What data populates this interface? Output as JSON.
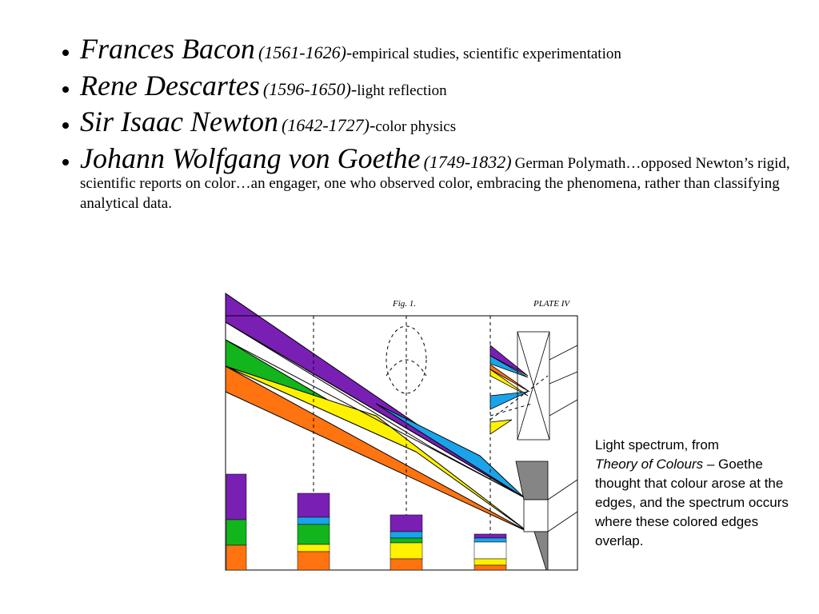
{
  "bullets": [
    {
      "name": "Frances Bacon",
      "dates": "(1561-1626)-",
      "desc": "empirical studies, scientific experimentation"
    },
    {
      "name": "Rene Descartes",
      "dates": "(1596-1650)-",
      "desc": "light reflection"
    },
    {
      "name": "Sir Isaac Newton",
      "dates": "(1642-1727)-",
      "desc": "color physics"
    },
    {
      "name": "Johann Wolfgang von Goethe",
      "dates": "(1749-1832)",
      "desc": "German Polymath…opposed Newton’s rigid, scientific reports on color…an engager, one who observed color, embracing the phenomena, rather than classifying analytical data."
    }
  ],
  "figure": {
    "fig_label": "Fig. 1.",
    "plate": "PLATE IV"
  },
  "caption": {
    "intro": "Light spectrum, from",
    "title": "Theory of Colours",
    "rest": "– Goethe thought that colour arose at the edges, and the spectrum occurs where these colored edges overlap."
  }
}
